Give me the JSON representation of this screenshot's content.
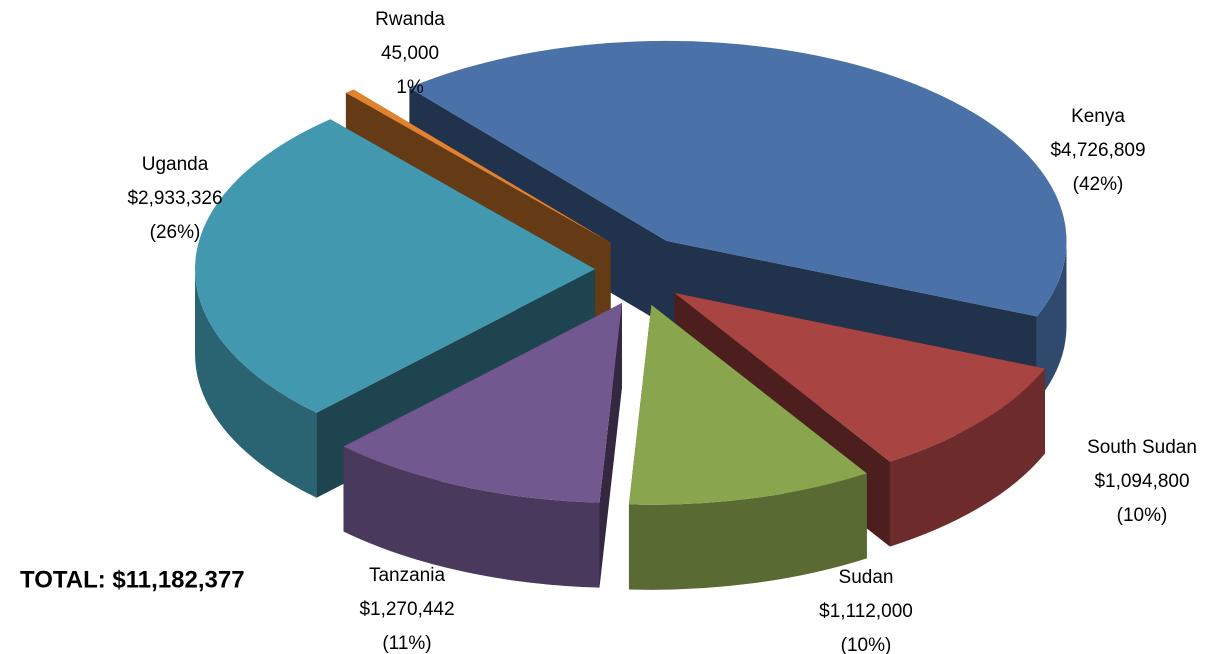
{
  "chart_data": {
    "type": "pie3d",
    "categories": [
      "Kenya",
      "South Sudan",
      "Sudan",
      "Tanzania",
      "Uganda",
      "Rwanda"
    ],
    "values": [
      4726809,
      1094800,
      1112000,
      1270442,
      2933326,
      45000
    ],
    "value_labels": [
      "$4,726,809",
      "$1,094,800",
      "$1,112,000",
      "$1,270,442",
      "$2,933,326",
      "45,000"
    ],
    "percents": [
      42,
      10,
      10,
      11,
      26,
      1
    ],
    "percent_labels": [
      "(42%)",
      "(10%)",
      "(10%)",
      "(11%)",
      "(26%)",
      "1%"
    ],
    "colors": [
      "#4a72a8",
      "#a84442",
      "#89a54e",
      "#71588f",
      "#4198af",
      "#e0822f"
    ],
    "annotation": "TOTAL: $11,182,377"
  }
}
